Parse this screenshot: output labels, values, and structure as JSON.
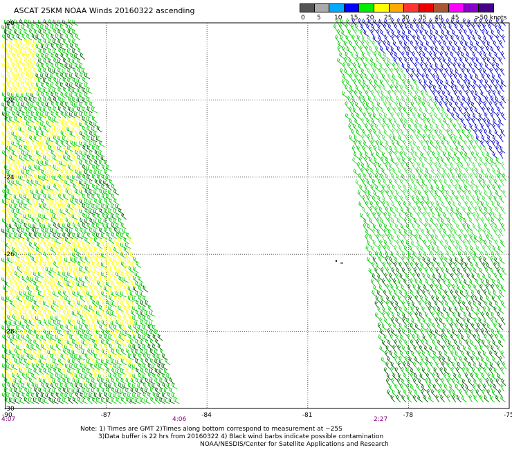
{
  "title": "ASCAT 25KM NOAA Winds 20160322 ascending",
  "legend": {
    "swatches": [
      {
        "color": "#555555"
      },
      {
        "color": "#aaaaaa"
      },
      {
        "color": "#00aaff"
      },
      {
        "color": "#0000ff"
      },
      {
        "color": "#00ee00"
      },
      {
        "color": "#ffff00"
      },
      {
        "color": "#ffaa00"
      },
      {
        "color": "#ff3333"
      },
      {
        "color": "#ee0000"
      },
      {
        "color": "#aa5533"
      },
      {
        "color": "#ff00ff"
      },
      {
        "color": "#8800cc"
      },
      {
        "color": "#440088"
      }
    ],
    "labels": [
      "0",
      "5",
      "10",
      "15",
      "20",
      "25",
      "30",
      "35",
      "40",
      "45",
      ">50 knots"
    ]
  },
  "map": {
    "lat_labels": [
      "-20",
      "-22",
      "-24",
      "-26",
      "-28",
      "-30"
    ],
    "lon_labels": [
      "-90",
      "-87",
      "-84",
      "-81",
      "-78",
      "-75"
    ],
    "pass_times": [
      "4:07",
      "4:06",
      "2:27"
    ],
    "colors": {
      "dark_green": "#006400",
      "green": "#00cc00",
      "light_green": "#44dd44",
      "yellow": "#ffff00",
      "blue": "#0000cc",
      "grid": "#555555",
      "time_label": "#800080"
    }
  },
  "notes": {
    "line1": "Note: 1) Times are GMT 2)Times along bottom correspond to measurement at ~25S",
    "line2": "3)Data buffer is 22 hrs from 20160322 4) Black wind barbs indicate possible contamination",
    "line3": "NOAA/NESDIS/Center for Satellite Applications and Research"
  }
}
